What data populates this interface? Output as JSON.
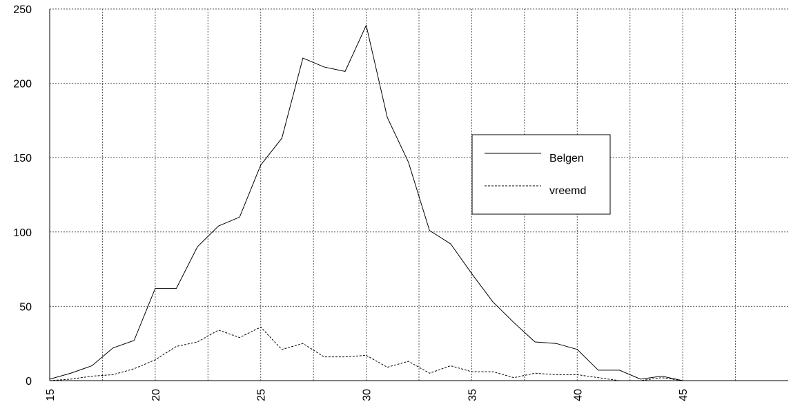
{
  "chart_data": {
    "type": "line",
    "x": [
      15,
      16,
      17,
      18,
      19,
      20,
      21,
      22,
      23,
      24,
      25,
      26,
      27,
      28,
      29,
      30,
      31,
      32,
      33,
      34,
      35,
      36,
      37,
      38,
      39,
      40,
      41,
      42,
      43,
      44,
      45,
      46,
      47,
      48,
      49
    ],
    "series": [
      {
        "name": "Belgen",
        "color": "#000000",
        "dash": "solid",
        "values": [
          1,
          5,
          10,
          22,
          27,
          62,
          62,
          90,
          104,
          110,
          145,
          163,
          217,
          211,
          208,
          239,
          177,
          147,
          101,
          92,
          72,
          53,
          39,
          26,
          25,
          21,
          7,
          7,
          1,
          3,
          0,
          0,
          0,
          0,
          0
        ]
      },
      {
        "name": "vreemd",
        "color": "#000000",
        "dash": "dotted",
        "values": [
          0,
          1,
          3,
          4,
          8,
          14,
          23,
          26,
          34,
          29,
          36,
          21,
          25,
          16,
          16,
          17,
          9,
          13,
          5,
          10,
          6,
          6,
          2,
          5,
          4,
          4,
          2,
          0,
          0,
          2,
          0,
          0,
          0,
          0,
          0
        ]
      }
    ],
    "xlim": [
      15,
      50
    ],
    "xticks": [
      15,
      20,
      25,
      30,
      35,
      40,
      45
    ],
    "x_minor_ticks": [
      17.5,
      22.5,
      27.5,
      32.5,
      37.5,
      42.5,
      47.5
    ],
    "ylim": [
      0,
      250
    ],
    "yticks": [
      0,
      50,
      100,
      150,
      200,
      250
    ],
    "grid": true,
    "legend": "right"
  }
}
